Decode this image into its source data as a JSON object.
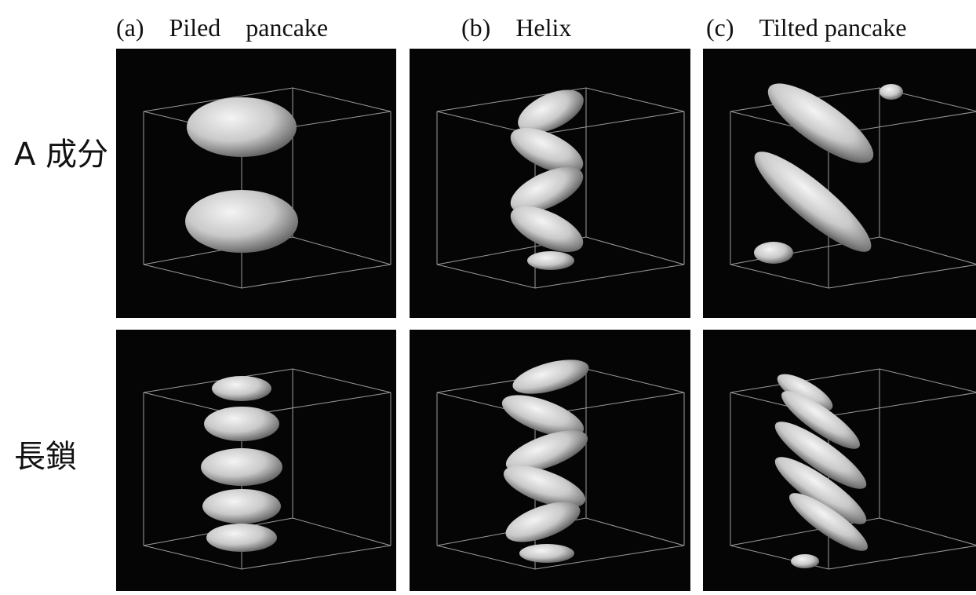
{
  "columns": [
    "(a)　Piled　pancake",
    "(b)　Helix",
    "(c)　Tilted pancake"
  ],
  "rows": [
    "A 成分",
    "長鎖"
  ]
}
